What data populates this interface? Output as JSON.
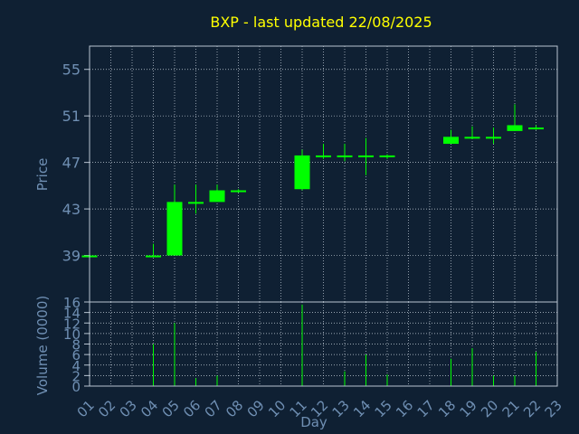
{
  "chart_data": [
    {
      "type": "candlestick",
      "title": "BXP - last updated 22/08/2025",
      "ylabel": "Price",
      "ylim": [
        35,
        57
      ],
      "y_ticks": [
        39,
        43,
        47,
        51,
        55
      ],
      "grid": true,
      "colors": {
        "title": "#ffff00",
        "axis_text": "#6f8fb3",
        "frame": "#b9c5d2",
        "grid": "#c8d2dc",
        "candle": "#00ff00",
        "background": "#0f2033"
      },
      "candles": [
        {
          "day": "01",
          "open": 39.0,
          "high": 39.0,
          "low": 39.0,
          "close": 39.0
        },
        {
          "day": "04",
          "open": 39.0,
          "high": 40.0,
          "low": 38.9,
          "close": 39.0
        },
        {
          "day": "05",
          "open": 39.0,
          "high": 45.1,
          "low": 39.0,
          "close": 43.6
        },
        {
          "day": "06",
          "open": 43.6,
          "high": 45.1,
          "low": 42.6,
          "close": 43.6
        },
        {
          "day": "07",
          "open": 43.6,
          "high": 45.1,
          "low": 43.6,
          "close": 44.6
        },
        {
          "day": "08",
          "open": 44.6,
          "high": 44.7,
          "low": 44.4,
          "close": 44.6
        },
        {
          "day": "11",
          "open": 44.7,
          "high": 48.1,
          "low": 44.6,
          "close": 47.6
        },
        {
          "day": "12",
          "open": 47.6,
          "high": 48.6,
          "low": 47.3,
          "close": 47.6
        },
        {
          "day": "13",
          "open": 47.6,
          "high": 48.6,
          "low": 47.1,
          "close": 47.6
        },
        {
          "day": "14",
          "open": 47.6,
          "high": 49.1,
          "low": 45.9,
          "close": 47.6
        },
        {
          "day": "15",
          "open": 47.6,
          "high": 47.7,
          "low": 47.3,
          "close": 47.6
        },
        {
          "day": "18",
          "open": 48.6,
          "high": 49.8,
          "low": 48.6,
          "close": 49.2
        },
        {
          "day": "19",
          "open": 49.2,
          "high": 50.1,
          "low": 49.0,
          "close": 49.2
        },
        {
          "day": "20",
          "open": 49.2,
          "high": 50.0,
          "low": 48.6,
          "close": 49.2
        },
        {
          "day": "21",
          "open": 49.7,
          "high": 52.0,
          "low": 49.7,
          "close": 50.2
        },
        {
          "day": "22",
          "open": 50.0,
          "high": 50.2,
          "low": 49.8,
          "close": 50.0
        }
      ]
    },
    {
      "type": "bar",
      "ylabel": "Volume (0000)",
      "xlabel": "Day",
      "ylim": [
        0,
        16
      ],
      "y_ticks": [
        0,
        2,
        4,
        6,
        8,
        10,
        12,
        14,
        16
      ],
      "categories": [
        "01",
        "02",
        "03",
        "04",
        "05",
        "06",
        "07",
        "08",
        "09",
        "10",
        "11",
        "12",
        "13",
        "14",
        "15",
        "16",
        "17",
        "18",
        "19",
        "20",
        "21",
        "22",
        "23"
      ],
      "values": [
        0,
        0,
        0,
        8,
        12,
        1.5,
        2,
        0,
        0,
        0,
        15.5,
        0,
        2.8,
        6,
        2.2,
        0,
        0,
        5.2,
        7.2,
        2,
        2,
        6.5,
        0
      ]
    }
  ]
}
